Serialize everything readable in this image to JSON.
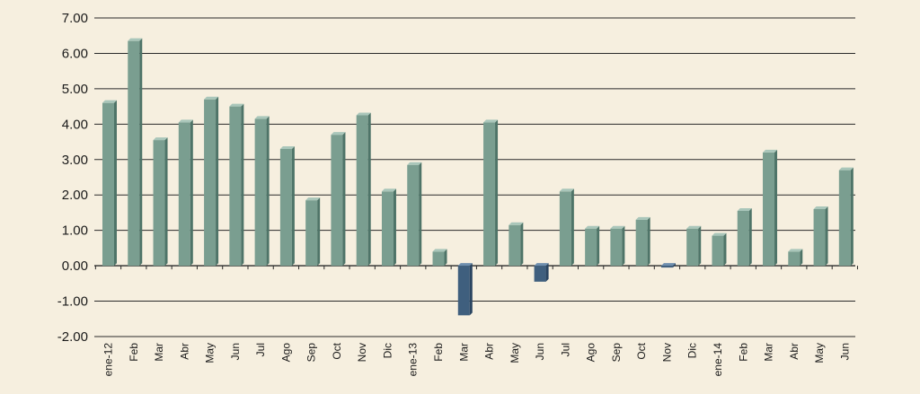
{
  "chart_data": {
    "type": "bar",
    "categories": [
      "ene-12",
      "Feb",
      "Mar",
      "Abr",
      "May",
      "Jun",
      "Jul",
      "Ago",
      "Sep",
      "Oct",
      "Nov",
      "Dic",
      "ene-13",
      "Feb",
      "Mar",
      "Abr",
      "May",
      "Jun",
      "Jul",
      "Ago",
      "Sep",
      "Oct",
      "Nov",
      "Dic",
      "ene-14",
      "Feb",
      "Mar",
      "Abr",
      "May",
      "Jun"
    ],
    "values": [
      4.6,
      6.35,
      3.55,
      4.05,
      4.7,
      4.5,
      4.15,
      3.3,
      1.85,
      3.7,
      4.25,
      2.1,
      2.85,
      0.4,
      -1.4,
      4.05,
      1.15,
      -0.45,
      2.1,
      1.05,
      1.05,
      1.3,
      -0.05,
      1.05,
      0.85,
      1.55,
      3.2,
      0.4,
      1.6,
      2.7
    ],
    "ylim": [
      -2,
      7
    ],
    "yticks": [
      "7.00",
      "6.00",
      "5.00",
      "4.00",
      "3.00",
      "2.00",
      "1.00",
      "0.00",
      "-1.00",
      "-2.00"
    ],
    "grid": true,
    "colors": {
      "positive_front": "#7a9e90",
      "positive_side": "#4e7468",
      "positive_top": "#a9c6ba",
      "negative_front": "#3f5f7e",
      "negative_side": "#2a4561",
      "negative_top": "#6f8fae",
      "gridline": "#2a2a2a",
      "background": "#f6efdf"
    }
  }
}
